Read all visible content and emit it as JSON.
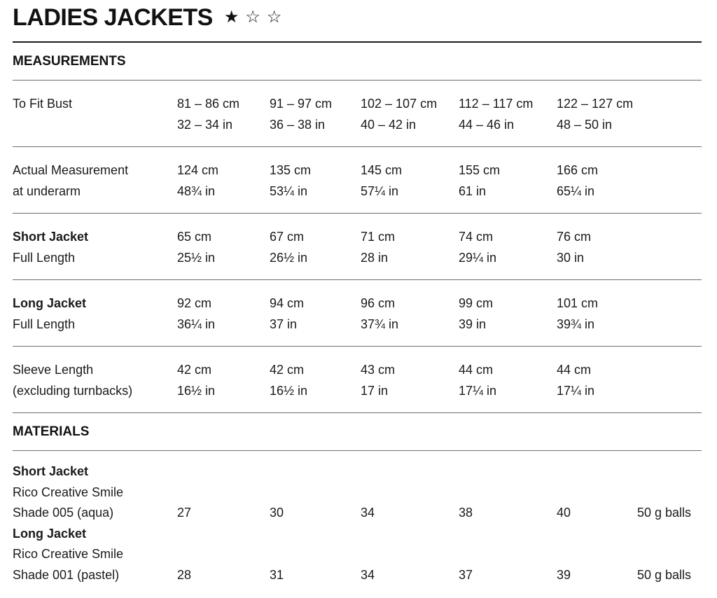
{
  "title": "LADIES JACKETS",
  "rating": {
    "stars": [
      "★",
      "☆",
      "☆"
    ]
  },
  "measurements": {
    "heading": "MEASUREMENTS",
    "rows": [
      {
        "label1": "To Fit Bust",
        "label2": "",
        "values": [
          {
            "cm": "81 – 86 cm",
            "in": "32 – 34 in"
          },
          {
            "cm": "91 – 97 cm",
            "in": "36 – 38 in"
          },
          {
            "cm": "102 – 107 cm",
            "in": "40 – 42 in"
          },
          {
            "cm": "112 – 117 cm",
            "in": "44 – 46 in"
          },
          {
            "cm": "122 – 127 cm",
            "in": "48 – 50 in"
          }
        ]
      },
      {
        "label1": "Actual Measurement",
        "label2": "at underarm",
        "values": [
          {
            "cm": "124 cm",
            "in": "48¾ in"
          },
          {
            "cm": "135 cm",
            "in": "53¼ in"
          },
          {
            "cm": "145 cm",
            "in": "57¼ in"
          },
          {
            "cm": "155 cm",
            "in": "61 in"
          },
          {
            "cm": "166 cm",
            "in": "65¼ in"
          }
        ]
      },
      {
        "label1": "Short Jacket",
        "label2": "Full Length",
        "values": [
          {
            "cm": "65 cm",
            "in": "25½ in"
          },
          {
            "cm": "67 cm",
            "in": "26½ in"
          },
          {
            "cm": "71 cm",
            "in": "28 in"
          },
          {
            "cm": "74 cm",
            "in": "29¼ in"
          },
          {
            "cm": "76 cm",
            "in": "30 in"
          }
        ]
      },
      {
        "label1": "Long Jacket",
        "label2": "Full Length",
        "values": [
          {
            "cm": "92 cm",
            "in": "36¼ in"
          },
          {
            "cm": "94 cm",
            "in": "37 in"
          },
          {
            "cm": "96 cm",
            "in": "37¾ in"
          },
          {
            "cm": "99 cm",
            "in": "39 in"
          },
          {
            "cm": "101 cm",
            "in": "39¾ in"
          }
        ]
      },
      {
        "label1": "Sleeve Length",
        "label2": "(excluding turnbacks)",
        "values": [
          {
            "cm": "42 cm",
            "in": "16½ in"
          },
          {
            "cm": "42 cm",
            "in": "16½ in"
          },
          {
            "cm": "43 cm",
            "in": "17 in"
          },
          {
            "cm": "44 cm",
            "in": "17¼ in"
          },
          {
            "cm": "44 cm",
            "in": "17¼ in"
          }
        ]
      }
    ]
  },
  "materials": {
    "heading": "MATERIALS",
    "items": [
      {
        "name": "Short Jacket",
        "yarn": "Rico Creative Smile",
        "shade": "Shade 005 (aqua)",
        "quantities": [
          "27",
          "30",
          "34",
          "38",
          "40"
        ],
        "unit": "50 g balls"
      },
      {
        "name": "Long Jacket",
        "yarn": "Rico Creative Smile",
        "shade": "Shade 001 (pastel)",
        "quantities": [
          "28",
          "31",
          "34",
          "37",
          "39"
        ],
        "unit": "50 g balls"
      }
    ]
  }
}
